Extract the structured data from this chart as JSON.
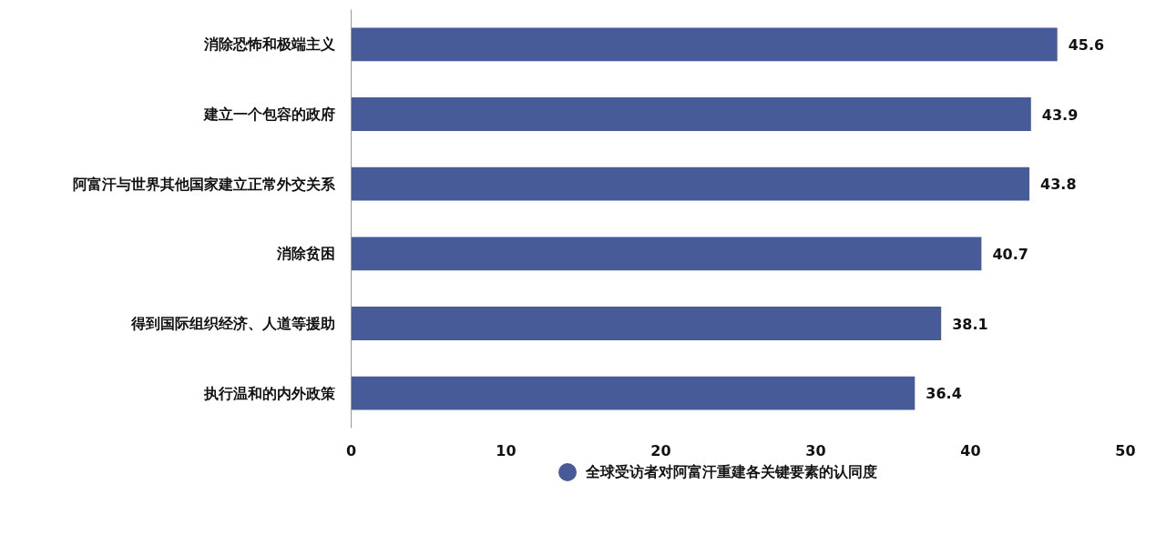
{
  "chart_data": {
    "type": "bar",
    "orientation": "horizontal",
    "categories": [
      "消除恐怖和极端主义",
      "建立一个包容的政府",
      "阿富汗与世界其他国家建立正常外交关系",
      "消除贫困",
      "得到国际组织经济、人道等援助",
      "执行温和的内外政策"
    ],
    "series": [
      {
        "name": "全球受访者对阿富汗重建各关键要素的认同度",
        "color": "#475b99",
        "values": [
          45.6,
          43.9,
          43.8,
          40.7,
          38.1,
          36.4
        ]
      }
    ],
    "xlim": [
      0,
      50
    ],
    "xticks": [
      0,
      10,
      20,
      30,
      40,
      50
    ],
    "grid": false,
    "legend": "bottom",
    "data_labels": true
  }
}
